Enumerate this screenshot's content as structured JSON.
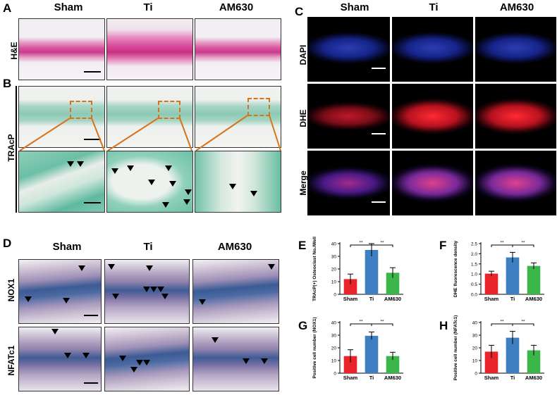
{
  "panels": {
    "A": "A",
    "B": "B",
    "C": "C",
    "D": "D",
    "E": "E",
    "F": "F",
    "G": "G",
    "H": "H"
  },
  "groups": [
    "Sham",
    "Ti",
    "AM630"
  ],
  "row_labels": {
    "he": "H&E",
    "trap": "TRAcP",
    "dapi": "DAPI",
    "dhe": "DHE",
    "merge": "Merge",
    "nox1": "NOX1",
    "nfatc1": "NFATc1"
  },
  "colors": {
    "sham": "#e8232a",
    "ti": "#3d7fc1",
    "am630": "#3cb54a",
    "dash": "#d8731a"
  },
  "chart_data": [
    {
      "panel": "E",
      "type": "bar",
      "categories": [
        "Sham",
        "Ti",
        "AM630"
      ],
      "values": [
        12,
        35,
        17
      ],
      "errors": [
        4,
        5,
        4
      ],
      "ylabel": "TRAcP(+) Osteoclast No./Well",
      "ylim": [
        0,
        40
      ],
      "yticks": [
        0,
        10,
        20,
        30,
        40
      ],
      "significance": [
        [
          "Sham",
          "Ti",
          "**"
        ],
        [
          "Ti",
          "AM630",
          "**"
        ]
      ]
    },
    {
      "panel": "F",
      "type": "bar",
      "categories": [
        "Sham",
        "Ti",
        "AM630"
      ],
      "values": [
        1.02,
        1.82,
        1.4
      ],
      "errors": [
        0.12,
        0.25,
        0.15
      ],
      "ylabel": "DHE fluorescence density",
      "ylim": [
        0,
        2.5
      ],
      "yticks": [
        0.0,
        0.5,
        1.0,
        1.5,
        2.0,
        2.5
      ],
      "significance": [
        [
          "Sham",
          "Ti",
          "**"
        ],
        [
          "Ti",
          "AM630",
          "**"
        ]
      ]
    },
    {
      "panel": "G",
      "type": "bar",
      "categories": [
        "Sham",
        "Ti",
        "AM630"
      ],
      "values": [
        13.5,
        29.5,
        13.5
      ],
      "errors": [
        5,
        3,
        3
      ],
      "ylabel": "Positive cell number (NOX1)",
      "ylim": [
        0,
        40
      ],
      "yticks": [
        0,
        10,
        20,
        30,
        40
      ],
      "significance": [
        [
          "Sham",
          "Ti",
          "**"
        ],
        [
          "Ti",
          "AM630",
          "**"
        ]
      ]
    },
    {
      "panel": "H",
      "type": "bar",
      "categories": [
        "Sham",
        "Ti",
        "AM630"
      ],
      "values": [
        17,
        28,
        18
      ],
      "errors": [
        5,
        5,
        4
      ],
      "ylabel": "Positive cell number (NFATc1)",
      "ylim": [
        0,
        40
      ],
      "yticks": [
        0,
        10,
        20,
        30,
        40
      ],
      "significance": [
        [
          "Sham",
          "Ti",
          "**"
        ],
        [
          "Ti",
          "AM630",
          "**"
        ]
      ]
    }
  ]
}
